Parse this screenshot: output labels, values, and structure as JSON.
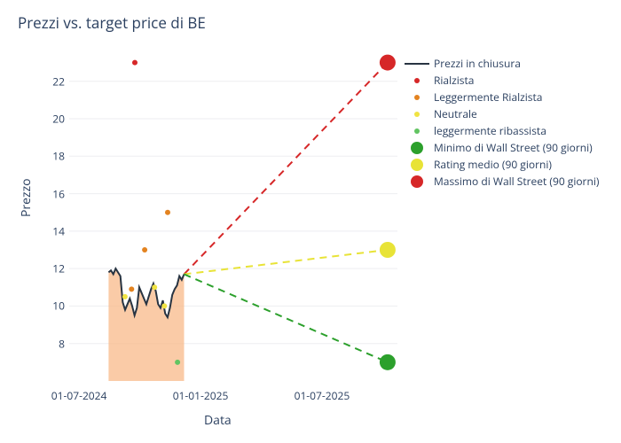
{
  "title": "Prezzi vs. target price di BE",
  "x_axis_label": "Data",
  "y_axis_label": "Prezzo",
  "background_color": "#ffffff",
  "grid_color": "#edeef0",
  "colors": {
    "close_line": "#283442",
    "area_fill": "#f8b98a",
    "rialzista": "#d62728",
    "legg_rialzista": "#e38320",
    "neutrale": "#f0e342",
    "legg_ribassista": "#62c462",
    "min_ws": "#2ca02c",
    "rating_medio": "#e8e337",
    "max_ws": "#d62728"
  },
  "x_ticks": [
    {
      "label": "01-07-2024",
      "t": 0.03
    },
    {
      "label": "01-01-2025",
      "t": 0.4
    },
    {
      "label": "01-07-2025",
      "t": 0.77
    }
  ],
  "y_axis": {
    "min": 6,
    "max": 23.5
  },
  "y_ticks": [
    8,
    10,
    12,
    14,
    16,
    18,
    20,
    22
  ],
  "close_prices": {
    "t_start": 0.12,
    "t_end": 0.35,
    "values": [
      11.8,
      11.9,
      11.7,
      12.0,
      11.8,
      11.6,
      10.2,
      9.8,
      10.1,
      10.4,
      10.0,
      9.5,
      9.9,
      11.0,
      10.7,
      10.4,
      10.1,
      10.5,
      10.9,
      11.2,
      10.8,
      10.1,
      9.9,
      10.3,
      9.6,
      9.4,
      9.9,
      10.6,
      10.9,
      11.1,
      11.6,
      11.4,
      11.7
    ]
  },
  "scatter_points": [
    {
      "t": 0.2,
      "y": 23.0,
      "color": "#d62728",
      "size": 6
    },
    {
      "t": 0.19,
      "y": 10.9,
      "color": "#e38320",
      "size": 6
    },
    {
      "t": 0.23,
      "y": 13.0,
      "color": "#e38320",
      "size": 6
    },
    {
      "t": 0.3,
      "y": 15.0,
      "color": "#e38320",
      "size": 6
    },
    {
      "t": 0.17,
      "y": 10.5,
      "color": "#f0e342",
      "size": 6
    },
    {
      "t": 0.29,
      "y": 10.0,
      "color": "#f0e342",
      "size": 6
    },
    {
      "t": 0.26,
      "y": 11.0,
      "color": "#f0e342",
      "size": 6
    },
    {
      "t": 0.33,
      "y": 7.0,
      "color": "#62c462",
      "size": 6
    }
  ],
  "projection_start": {
    "t": 0.35,
    "y": 11.7
  },
  "projections": [
    {
      "t": 0.97,
      "y": 23.0,
      "color": "#d62728",
      "size": 18
    },
    {
      "t": 0.97,
      "y": 13.0,
      "color": "#e8e337",
      "size": 18
    },
    {
      "t": 0.97,
      "y": 7.0,
      "color": "#2ca02c",
      "size": 18
    }
  ],
  "legend": [
    {
      "type": "line",
      "color": "#283442",
      "label": "Prezzi in chiusura"
    },
    {
      "type": "small",
      "color": "#d62728",
      "label": "Rialzista"
    },
    {
      "type": "small",
      "color": "#e38320",
      "label": "Leggermente Rialzista"
    },
    {
      "type": "small",
      "color": "#f0e342",
      "label": "Neutrale"
    },
    {
      "type": "small",
      "color": "#62c462",
      "label": "leggermente ribassista"
    },
    {
      "type": "large",
      "color": "#2ca02c",
      "label": "Minimo di Wall Street (90 giorni)"
    },
    {
      "type": "large",
      "color": "#e8e337",
      "label": "Rating medio (90 giorni)"
    },
    {
      "type": "large",
      "color": "#d62728",
      "label": "Massimo di Wall Street (90 giorni)"
    }
  ]
}
